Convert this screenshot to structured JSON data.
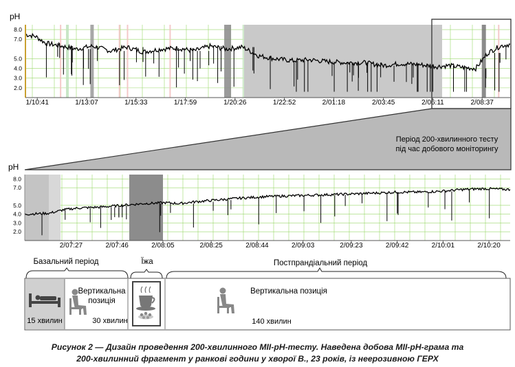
{
  "figure": {
    "caption_line1": "Рисунок 2 — Дизайн проведення 200-хвилинного MII-pH-тесту. Наведена добова MII-pH-грама та",
    "caption_line2": "200-хвилинний фрагмент у ранкові години у хворої В., 23 років, із неерозивною ГЕРХ",
    "callout_line1": "Період 200-хвилинного тесту",
    "callout_line2": "під час добового моніторингу",
    "colors": {
      "ph_trace": "#000000",
      "grid": "#9ad86a",
      "shade": "#b9b9b9",
      "dark_shade": "#777777",
      "frame": "#333333"
    }
  },
  "chart_data": [
    {
      "type": "line",
      "title": "",
      "ylabel": "pH",
      "yticks": [
        "8.0",
        "7.0",
        "5.0",
        "4.0",
        "3.0",
        "2.0"
      ],
      "ylim": [
        1,
        8.5
      ],
      "xlabel": "",
      "xticks": [
        "1/10:41",
        "1/13:07",
        "1/15:33",
        "1/17:59",
        "1/20:26",
        "1/22:52",
        "2/01:18",
        "2/03:45",
        "2/06:11",
        "2/08:37"
      ],
      "x_range_hours": [
        10.1,
        34.0
      ],
      "grid": true,
      "highlighted_period": [
        "2/07:10",
        "2/10:30"
      ],
      "series": [
        {
          "name": "",
          "x_hours": [
            10.1,
            10.6,
            11.1,
            11.9,
            12.6,
            13.4,
            14.3,
            15.1,
            15.9,
            16.8,
            17.6,
            18.4,
            19.2,
            20.0,
            20.8,
            21.6,
            22.4,
            23.3,
            24.1,
            25.0,
            25.9,
            26.8,
            27.7,
            28.6,
            29.5,
            30.4,
            31.0,
            31.7,
            32.3,
            32.9,
            33.5,
            34.0
          ],
          "ph": [
            7.5,
            7.3,
            6.6,
            6.3,
            6.0,
            6.3,
            5.8,
            6.2,
            5.7,
            6.0,
            6.1,
            5.8,
            6.3,
            6.0,
            6.2,
            5.3,
            5.0,
            4.8,
            4.9,
            4.7,
            4.6,
            4.6,
            4.3,
            4.5,
            4.4,
            4.2,
            4.3,
            4.1,
            4.0,
            5.6,
            6.3,
            6.5
          ]
        }
      ]
    },
    {
      "type": "line",
      "title": "",
      "ylabel": "pH",
      "yticks": [
        "8.0",
        "7.0",
        "5.0",
        "4.0",
        "3.0",
        "2.0"
      ],
      "ylim": [
        1,
        8.5
      ],
      "xlabel": "",
      "xticks": [
        "2/07:27",
        "2/07:46",
        "2/08:05",
        "2/08:25",
        "2/08:44",
        "2/09:03",
        "2/09:23",
        "2/09:42",
        "2/10:01",
        "2/10:20"
      ],
      "x_range_hours": [
        31.13,
        34.48
      ],
      "grid": true,
      "series": [
        {
          "name": "",
          "x_hours": [
            31.13,
            31.3,
            31.4,
            31.5,
            31.65,
            31.8,
            31.95,
            32.1,
            32.2,
            32.3,
            32.45,
            32.6,
            32.8,
            33.0,
            33.2,
            33.4,
            33.55,
            33.7,
            33.85,
            34.0,
            34.15,
            34.3,
            34.48
          ],
          "ph": [
            4.0,
            4.1,
            4.5,
            4.7,
            4.8,
            5.0,
            5.2,
            5.3,
            5.2,
            5.4,
            5.6,
            5.8,
            6.0,
            6.1,
            6.2,
            6.3,
            6.4,
            6.5,
            6.5,
            6.6,
            6.8,
            6.9,
            6.8
          ]
        }
      ]
    }
  ],
  "protocol": {
    "phases": [
      {
        "label": "Базальний період"
      },
      {
        "label": "Їжа"
      },
      {
        "label": "Постпрандіальний період"
      }
    ],
    "boxes": {
      "basal_supine_duration": "15 хвилин",
      "basal_upright_label": "Вертикальна позиція",
      "basal_upright_duration": "30 хвилин",
      "post_label": "Вертикальна позиція",
      "post_duration": "140 хвилин"
    },
    "icons": [
      "supine-patient-icon",
      "seated-patient-icon",
      "meal-icon",
      "seated-patient-icon"
    ]
  }
}
